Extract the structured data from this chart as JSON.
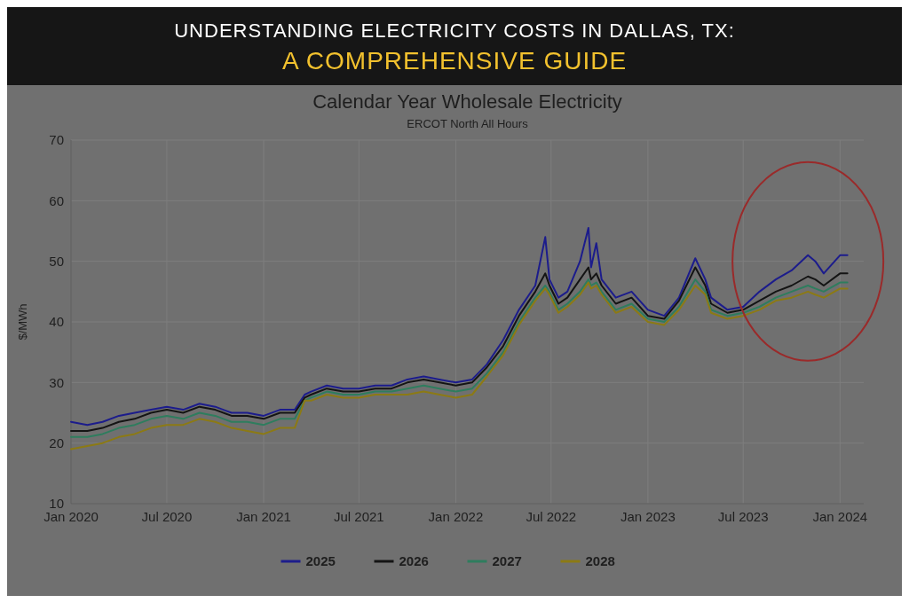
{
  "chart_data": {
    "type": "line",
    "title": "Calendar Year Wholesale Electricity",
    "subtitle": "ERCOT North All Hours",
    "ylabel": "$/MWh",
    "annotations": [
      "UNDERSTANDING ELECTRICITY COSTS IN DALLAS, TX:",
      "A COMPREHENSIVE GUIDE"
    ],
    "x": [
      "2020-01-01",
      "2020-02-01",
      "2020-03-01",
      "2020-04-01",
      "2020-05-01",
      "2020-06-01",
      "2020-07-01",
      "2020-08-01",
      "2020-09-01",
      "2020-10-01",
      "2020-11-01",
      "2020-12-01",
      "2021-01-01",
      "2021-02-01",
      "2021-03-01",
      "2021-03-20",
      "2021-04-01",
      "2021-05-01",
      "2021-06-01",
      "2021-07-01",
      "2021-08-01",
      "2021-09-01",
      "2021-10-01",
      "2021-11-01",
      "2021-12-01",
      "2022-01-01",
      "2022-02-01",
      "2022-03-01",
      "2022-04-01",
      "2022-05-01",
      "2022-06-01",
      "2022-06-20",
      "2022-06-28",
      "2022-07-15",
      "2022-08-01",
      "2022-08-25",
      "2022-09-10",
      "2022-09-15",
      "2022-09-25",
      "2022-10-05",
      "2022-11-01",
      "2022-12-01",
      "2023-01-01",
      "2023-02-01",
      "2023-03-01",
      "2023-04-01",
      "2023-04-20",
      "2023-05-01",
      "2023-06-01",
      "2023-07-01",
      "2023-08-01",
      "2023-09-01",
      "2023-10-01",
      "2023-11-01",
      "2023-11-15",
      "2023-12-01",
      "2024-01-01",
      "2024-01-15"
    ],
    "series": [
      {
        "name": "2025",
        "color": "#1c1c8c",
        "values": [
          23.5,
          23,
          23.5,
          24.5,
          25,
          25.5,
          26,
          25.5,
          26.5,
          26,
          25,
          25,
          24.5,
          25.5,
          25.5,
          28,
          28.5,
          29.5,
          29,
          29,
          29.5,
          29.5,
          30.5,
          31,
          30.5,
          30,
          30.5,
          33,
          37,
          42,
          46,
          54,
          47,
          44,
          45,
          50,
          55.5,
          49,
          53,
          47,
          44,
          45,
          42,
          41,
          44,
          50.5,
          47,
          44,
          42,
          42.5,
          45,
          47,
          48.5,
          51,
          50,
          48,
          51,
          51
        ]
      },
      {
        "name": "2026",
        "color": "#141414",
        "values": [
          22,
          22,
          22.5,
          23.5,
          24,
          25,
          25.5,
          25,
          26,
          25.5,
          24.5,
          24.5,
          24,
          25,
          25,
          27.5,
          28,
          29,
          28.5,
          28.5,
          29,
          29,
          30,
          30.5,
          30,
          29.5,
          30,
          32.5,
          36,
          41,
          45,
          48,
          46,
          43,
          44,
          47,
          49,
          47,
          48,
          46,
          43,
          44,
          41,
          40.5,
          43.5,
          49,
          46,
          43,
          41.5,
          42,
          43.5,
          45,
          46,
          47.5,
          47,
          46,
          48,
          48
        ]
      },
      {
        "name": "2027",
        "color": "#2e7d5e",
        "values": [
          21,
          21,
          21.5,
          22.5,
          23,
          24,
          24.5,
          24,
          25,
          24.5,
          23.5,
          23.5,
          23,
          24,
          24,
          27,
          27.5,
          28.5,
          28,
          28,
          28.5,
          28.5,
          29,
          29.5,
          29,
          28.5,
          29,
          31.5,
          35,
          40,
          44,
          46,
          45,
          42,
          43,
          45,
          47,
          46,
          46.5,
          45,
          42,
          43,
          40.5,
          40,
          42.5,
          47,
          45,
          42,
          41,
          41.5,
          42.5,
          44,
          45,
          46,
          45.5,
          45,
          46.5,
          46.5
        ]
      },
      {
        "name": "2028",
        "color": "#8c7a14",
        "values": [
          19,
          19.5,
          20,
          21,
          21.5,
          22.5,
          23,
          23,
          24,
          23.5,
          22.5,
          22,
          21.5,
          22.5,
          22.5,
          27,
          27,
          28,
          27.5,
          27.5,
          28,
          28,
          28,
          28.5,
          28,
          27.5,
          28,
          31,
          34.5,
          39.5,
          43.5,
          45.5,
          44.5,
          41.5,
          42.5,
          44.5,
          46.5,
          45.5,
          46,
          44.5,
          41.5,
          42.5,
          40,
          39.5,
          42,
          46,
          44.5,
          41.5,
          40.5,
          41,
          42,
          43.5,
          44,
          45,
          44.5,
          44,
          45.5,
          45.5
        ]
      }
    ],
    "xlim": [
      "2020-01-01",
      "2024-02-15"
    ],
    "xticks": [
      {
        "value": "2020-01-01",
        "label": "Jan 2020"
      },
      {
        "value": "2020-07-01",
        "label": "Jul 2020"
      },
      {
        "value": "2021-01-01",
        "label": "Jan 2021"
      },
      {
        "value": "2021-07-01",
        "label": "Jul 2021"
      },
      {
        "value": "2022-01-01",
        "label": "Jan 2022"
      },
      {
        "value": "2022-07-01",
        "label": "Jul 2022"
      },
      {
        "value": "2023-01-01",
        "label": "Jan 2023"
      },
      {
        "value": "2023-07-01",
        "label": "Jul 2023"
      },
      {
        "value": "2024-01-01",
        "label": "Jan 2024"
      }
    ],
    "ylim": [
      10,
      70
    ],
    "yticks": [
      10,
      20,
      30,
      40,
      50,
      60,
      70
    ],
    "grid": true,
    "legend": "bottom",
    "marker": "none",
    "line_style": "solid"
  }
}
